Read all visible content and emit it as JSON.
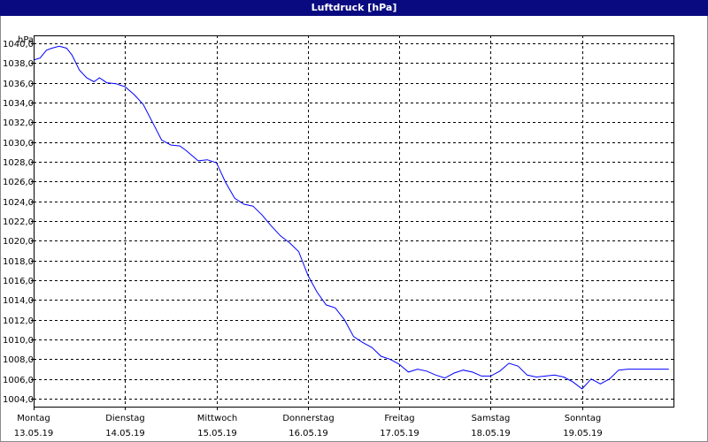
{
  "window": {
    "title": "Luftdruck [hPa]"
  },
  "colors": {
    "title_bar": "#0a0a80",
    "line": "#0000ff",
    "grid": "#000000"
  },
  "chart_data": {
    "type": "line",
    "title": "Luftdruck [hPa]",
    "ylabel": "hPa",
    "ylim": [
      1003.2,
      1040.8
    ],
    "yticks": [
      "1004,0",
      "1006,0",
      "1008,0",
      "1010,0",
      "1012,0",
      "1014,0",
      "1016,0",
      "1018,0",
      "1020,0",
      "1022,0",
      "1024,0",
      "1026,0",
      "1028,0",
      "1030,0",
      "1032,0",
      "1034,0",
      "1036,0",
      "1038,0",
      "1040,0"
    ],
    "ytick_values": [
      1004,
      1006,
      1008,
      1010,
      1012,
      1014,
      1016,
      1018,
      1020,
      1022,
      1024,
      1026,
      1028,
      1030,
      1032,
      1034,
      1036,
      1038,
      1040
    ],
    "xlim": [
      0,
      7
    ],
    "xticks": [
      {
        "day": "Montag",
        "date": "13.05.19"
      },
      {
        "day": "Dienstag",
        "date": "14.05.19"
      },
      {
        "day": "Mittwoch",
        "date": "15.05.19"
      },
      {
        "day": "Donnerstag",
        "date": "16.05.19"
      },
      {
        "day": "Freitag",
        "date": "17.05.19"
      },
      {
        "day": "Samstag",
        "date": "18.05.19"
      },
      {
        "day": "Sonntag",
        "date": "19.05.19"
      }
    ],
    "grid": true,
    "grid_style": "dashed",
    "series": [
      {
        "x": [
          0,
          0.07,
          0.14,
          0.2,
          0.28,
          0.36,
          0.42,
          0.5,
          0.58,
          0.66,
          0.72,
          0.8,
          0.9,
          1.0,
          1.1,
          1.2,
          1.3,
          1.4,
          1.5,
          1.6,
          1.66,
          1.8,
          1.9,
          2.0,
          2.1,
          2.2,
          2.3,
          2.4,
          2.5,
          2.6,
          2.7,
          2.8,
          2.9,
          3.0,
          3.1,
          3.2,
          3.3,
          3.4,
          3.5,
          3.6,
          3.7,
          3.8,
          3.9,
          4.0,
          4.1,
          4.2,
          4.3,
          4.4,
          4.5,
          4.6,
          4.7,
          4.8,
          4.9,
          5.0,
          5.1,
          5.2,
          5.3,
          5.4,
          5.5,
          5.6,
          5.7,
          5.8,
          5.9,
          6.0,
          6.1,
          6.2,
          6.3,
          6.4,
          6.5,
          6.6,
          6.62,
          6.7,
          6.8,
          6.9,
          6.95
        ],
        "y": [
          1038.3,
          1038.5,
          1039.3,
          1039.5,
          1039.7,
          1039.5,
          1038.8,
          1037.3,
          1036.5,
          1036.1,
          1036.5,
          1036.0,
          1035.9,
          1035.6,
          1034.8,
          1033.8,
          1032.0,
          1030.2,
          1029.7,
          1029.6,
          1029.2,
          1028.1,
          1028.2,
          1027.9,
          1025.9,
          1024.3,
          1023.7,
          1023.5,
          1022.6,
          1021.5,
          1020.5,
          1019.8,
          1018.9,
          1016.5,
          1014.8,
          1013.5,
          1013.2,
          1012.0,
          1010.3,
          1009.7,
          1009.2,
          1008.3,
          1008.0,
          1007.5,
          1006.7,
          1007.0,
          1006.8,
          1006.4,
          1006.1,
          1006.6,
          1006.9,
          1006.7,
          1006.3,
          1006.3,
          1006.8,
          1007.6,
          1007.3,
          1006.4,
          1006.2,
          1006.3,
          1006.4,
          1006.2,
          1005.7,
          1005.0,
          1006.0,
          1005.5,
          1006.0,
          1006.9,
          1007.0,
          1007.0,
          1007.0,
          1007.0,
          1007.0,
          1007.0,
          1007.0
        ]
      }
    ]
  }
}
